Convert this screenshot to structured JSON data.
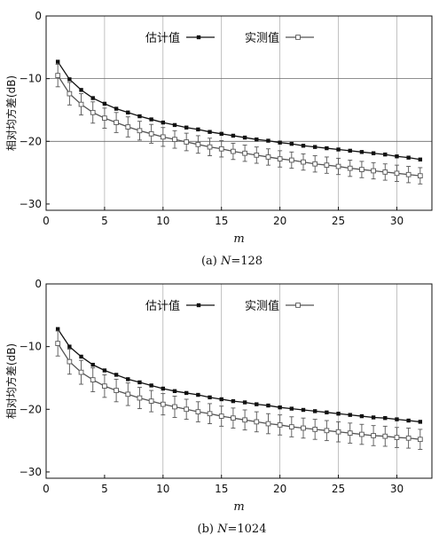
{
  "chart_data": [
    {
      "type": "line",
      "caption": "(a) N=128",
      "caption_prefix": "(a) ",
      "caption_var": "N",
      "caption_rest": "=128",
      "xlabel": "m",
      "ylabel": "相对均方差(dB)",
      "xlim": [
        0,
        33
      ],
      "ylim": [
        -31,
        0
      ],
      "xticks": [
        0,
        5,
        10,
        15,
        20,
        25,
        30
      ],
      "yticks": [
        0,
        -10,
        -20,
        -30
      ],
      "grid_x": [
        5,
        10,
        15,
        20,
        25,
        30
      ],
      "grid_y": [
        -10,
        -20
      ],
      "legend_position": "top",
      "x": [
        1,
        2,
        3,
        4,
        5,
        6,
        7,
        8,
        9,
        10,
        11,
        12,
        13,
        14,
        15,
        16,
        17,
        18,
        19,
        20,
        21,
        22,
        23,
        24,
        25,
        26,
        27,
        28,
        29,
        30,
        31,
        32
      ],
      "series": [
        {
          "name": "估计值",
          "marker": "filled-square",
          "color": "#111111",
          "values": [
            -7.3,
            -10.1,
            -11.8,
            -13.1,
            -14.0,
            -14.8,
            -15.4,
            -16.0,
            -16.5,
            -17.0,
            -17.4,
            -17.8,
            -18.1,
            -18.5,
            -18.8,
            -19.1,
            -19.4,
            -19.7,
            -19.9,
            -20.2,
            -20.4,
            -20.7,
            -20.9,
            -21.1,
            -21.3,
            -21.5,
            -21.7,
            -21.9,
            -22.1,
            -22.4,
            -22.6,
            -22.9
          ]
        },
        {
          "name": "实测值",
          "marker": "open-square",
          "color": "#555555",
          "values": [
            -9.5,
            -12.4,
            -14.1,
            -15.4,
            -16.3,
            -17.0,
            -17.7,
            -18.3,
            -18.8,
            -19.3,
            -19.7,
            -20.1,
            -20.5,
            -20.9,
            -21.2,
            -21.6,
            -21.9,
            -22.2,
            -22.5,
            -22.8,
            -23.0,
            -23.3,
            -23.6,
            -23.8,
            -24.0,
            -24.3,
            -24.5,
            -24.7,
            -24.9,
            -25.1,
            -25.3,
            -25.5
          ],
          "error": [
            1.8,
            1.8,
            1.7,
            1.7,
            1.6,
            1.6,
            1.6,
            1.5,
            1.5,
            1.5,
            1.4,
            1.4,
            1.4,
            1.4,
            1.3,
            1.3,
            1.3,
            1.3,
            1.3,
            1.3,
            1.3,
            1.3,
            1.3,
            1.3,
            1.3,
            1.3,
            1.3,
            1.3,
            1.3,
            1.3,
            1.3,
            1.3
          ]
        }
      ]
    },
    {
      "type": "line",
      "caption": "(b) N=1024",
      "caption_prefix": "(b) ",
      "caption_var": "N",
      "caption_rest": "=1024",
      "xlabel": "m",
      "ylabel": "相对均方差(dB)",
      "xlim": [
        0,
        33
      ],
      "ylim": [
        -31,
        0
      ],
      "xticks": [
        0,
        5,
        10,
        15,
        20,
        25,
        30
      ],
      "yticks": [
        0,
        -10,
        -20,
        -30
      ],
      "grid_x": [
        10,
        15,
        20,
        25,
        30
      ],
      "grid_y": [],
      "legend_position": "top",
      "x": [
        1,
        2,
        3,
        4,
        5,
        6,
        7,
        8,
        9,
        10,
        11,
        12,
        13,
        14,
        15,
        16,
        17,
        18,
        19,
        20,
        21,
        22,
        23,
        24,
        25,
        26,
        27,
        28,
        29,
        30,
        31,
        32
      ],
      "series": [
        {
          "name": "估计值",
          "marker": "filled-square",
          "color": "#111111",
          "values": [
            -7.2,
            -10.0,
            -11.6,
            -12.9,
            -13.8,
            -14.5,
            -15.2,
            -15.7,
            -16.2,
            -16.7,
            -17.1,
            -17.4,
            -17.7,
            -18.1,
            -18.4,
            -18.7,
            -18.9,
            -19.2,
            -19.4,
            -19.7,
            -19.9,
            -20.1,
            -20.3,
            -20.5,
            -20.7,
            -20.9,
            -21.1,
            -21.3,
            -21.4,
            -21.6,
            -21.8,
            -22.0
          ]
        },
        {
          "name": "实测值",
          "marker": "open-square",
          "color": "#555555",
          "values": [
            -9.5,
            -12.4,
            -14.1,
            -15.3,
            -16.3,
            -17.0,
            -17.6,
            -18.2,
            -18.7,
            -19.2,
            -19.6,
            -20.0,
            -20.4,
            -20.7,
            -21.1,
            -21.4,
            -21.7,
            -22.0,
            -22.3,
            -22.5,
            -22.8,
            -23.0,
            -23.2,
            -23.4,
            -23.6,
            -23.8,
            -24.0,
            -24.2,
            -24.3,
            -24.5,
            -24.6,
            -24.8
          ],
          "error": [
            2.0,
            2.0,
            1.9,
            1.9,
            1.8,
            1.8,
            1.8,
            1.7,
            1.7,
            1.7,
            1.7,
            1.6,
            1.6,
            1.6,
            1.6,
            1.6,
            1.6,
            1.6,
            1.6,
            1.6,
            1.6,
            1.6,
            1.6,
            1.6,
            1.6,
            1.6,
            1.6,
            1.6,
            1.6,
            1.6,
            1.6,
            1.6
          ]
        }
      ]
    }
  ]
}
